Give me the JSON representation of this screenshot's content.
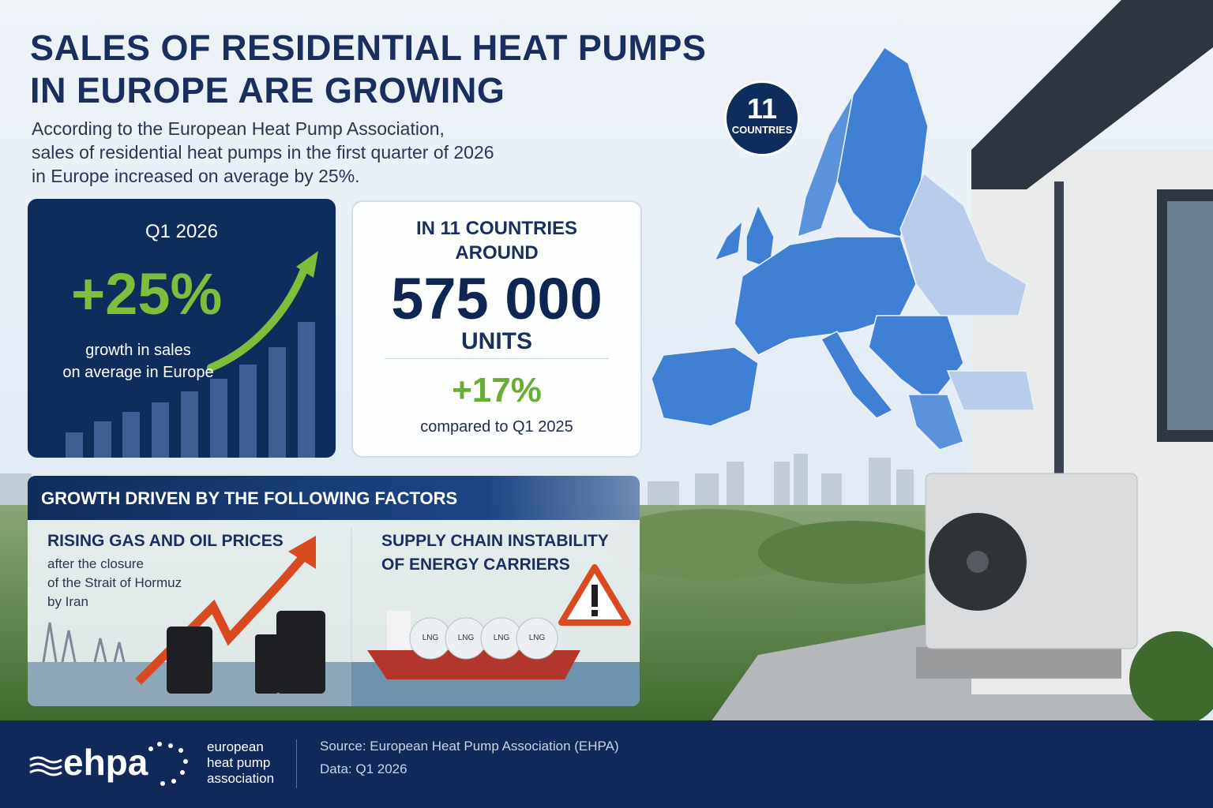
{
  "header": {
    "title": [
      "SALES OF RESIDENTIAL HEAT PUMPS",
      "IN EUROPE ARE GROWING"
    ],
    "subtitle": [
      "According to the European Heat Pump Association,",
      "sales of residential heat pumps in the first quarter of 2026",
      "in Europe increased on average by 25%."
    ]
  },
  "growth_card": {
    "period": "Q1 2026",
    "value": "+25%",
    "caption": [
      "growth in sales",
      "on average in Europe"
    ]
  },
  "units_card": {
    "heading": [
      "IN 11 COUNTRIES",
      "AROUND"
    ],
    "value": "575 000",
    "unit": "UNITS",
    "change": "+17%",
    "comparison": "compared to Q1 2025"
  },
  "map": {
    "badge_number": "11",
    "badge_label": "COUNTRIES"
  },
  "factors": {
    "heading": "GROWTH DRIVEN BY THE FOLLOWING FACTORS",
    "items": [
      {
        "title": [
          "RISING GAS AND OIL PRICES"
        ],
        "text": [
          "after the closure",
          "of the Strait of Hormuz",
          "by Iran"
        ]
      },
      {
        "title": [
          "SUPPLY CHAIN INSTABILITY",
          "OF ENERGY CARRIERS"
        ],
        "ship_label": "LNG"
      }
    ]
  },
  "footer": {
    "logo": "ehpa",
    "org_name": [
      "european",
      "heat pump",
      "association"
    ],
    "source": "Source: European Heat Pump Association (EHPA)",
    "data_note": "Data: Q1 2026"
  }
}
